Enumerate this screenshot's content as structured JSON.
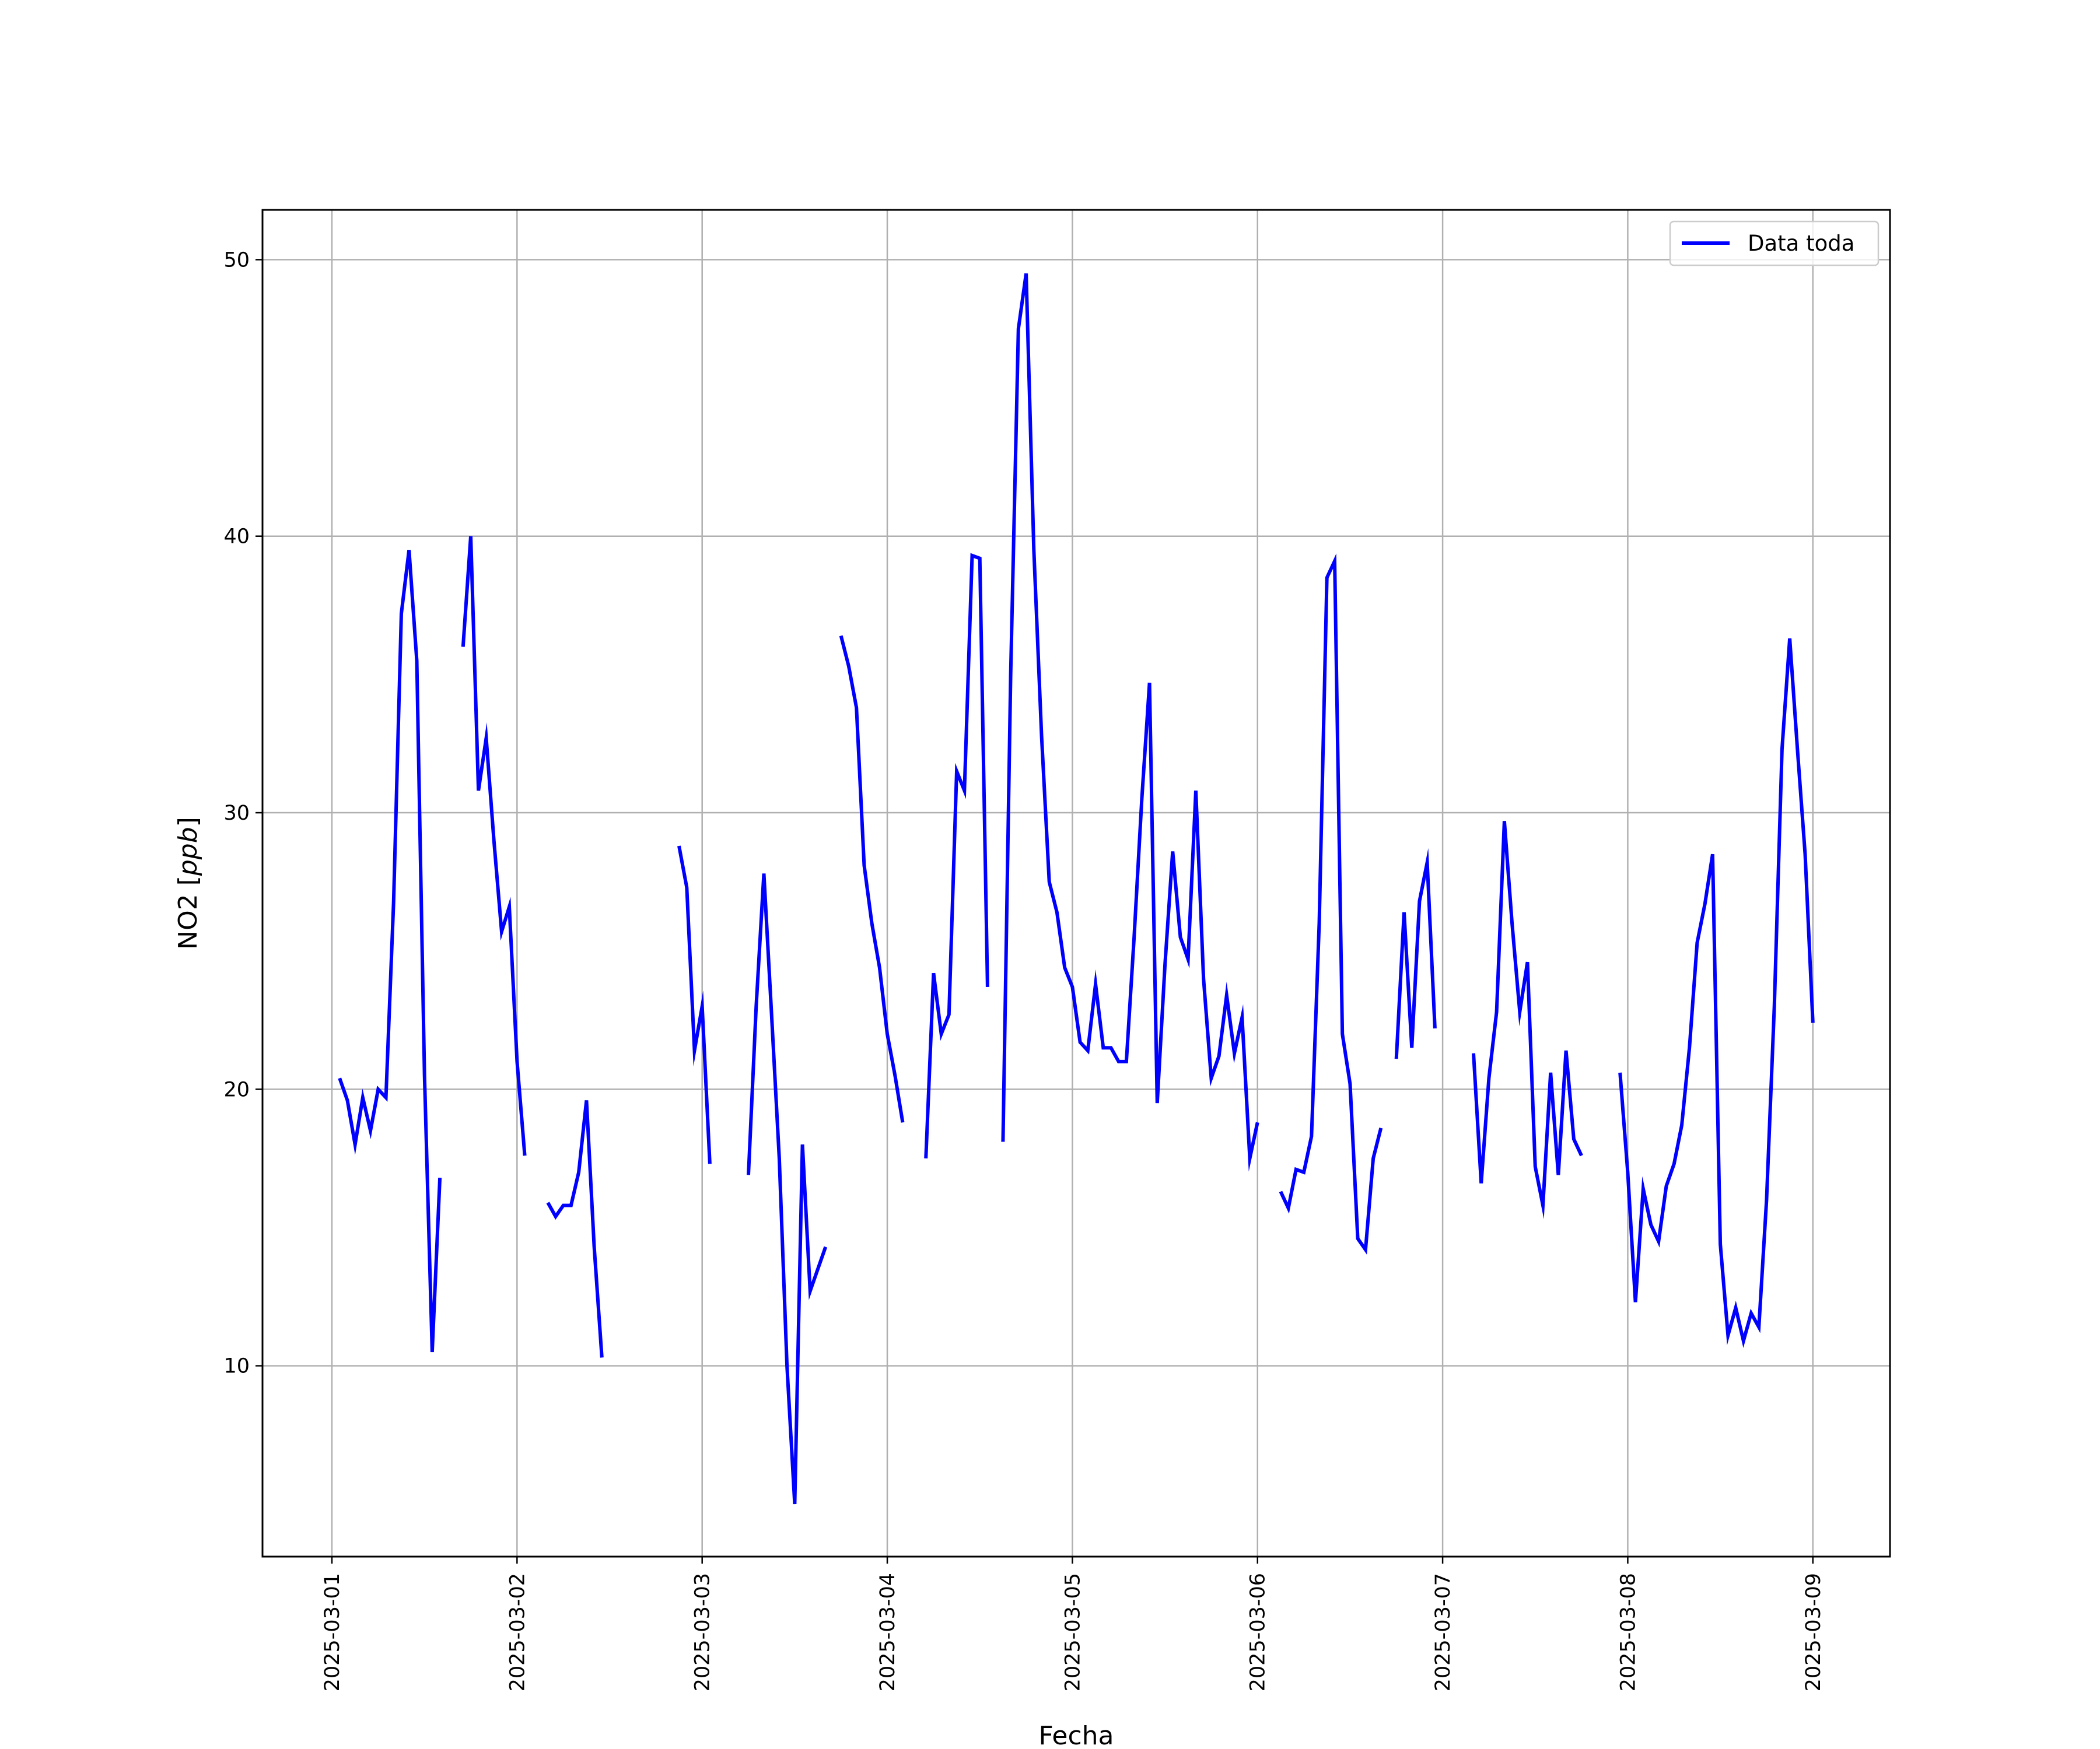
{
  "chart_data": {
    "type": "line",
    "xlabel": "Fecha",
    "ylabel": "NO2 [ppb]",
    "ylabel_main": "NO2 [",
    "ylabel_unit": "ppb",
    "ylabel_close": "]",
    "xlim": [
      "2025-02-28 15:00",
      "2025-03-09 10:00"
    ],
    "ylim": [
      3.1,
      51.8
    ],
    "x_tick_labels": [
      "2025-03-01",
      "2025-03-02",
      "2025-03-03",
      "2025-03-04",
      "2025-03-05",
      "2025-03-06",
      "2025-03-07",
      "2025-03-08",
      "2025-03-09"
    ],
    "y_tick_labels": [
      "10",
      "20",
      "30",
      "40",
      "50"
    ],
    "y_ticks": [
      10,
      20,
      30,
      40,
      50
    ],
    "grid": true,
    "legend_position": "top-right",
    "series": [
      {
        "name": "Data toda",
        "color": "#0000ff",
        "segments": [
          [
            [
              "2025-03-01 01:00",
              20.4
            ],
            [
              "2025-03-01 02:00",
              19.6
            ],
            [
              "2025-03-01 03:00",
              18.0
            ],
            [
              "2025-03-01 04:00",
              19.7
            ],
            [
              "2025-03-01 05:00",
              18.5
            ],
            [
              "2025-03-01 06:00",
              20.0
            ],
            [
              "2025-03-01 07:00",
              19.7
            ],
            [
              "2025-03-01 08:00",
              26.8
            ],
            [
              "2025-03-01 09:00",
              37.2
            ],
            [
              "2025-03-01 10:00",
              39.5
            ],
            [
              "2025-03-01 11:00",
              35.5
            ],
            [
              "2025-03-01 12:00",
              20.5
            ],
            [
              "2025-03-01 13:00",
              10.5
            ],
            [
              "2025-03-01 14:00",
              16.8
            ]
          ],
          [
            [
              "2025-03-01 17:00",
              36.0
            ],
            [
              "2025-03-01 18:00",
              40.0
            ],
            [
              "2025-03-01 19:00",
              30.8
            ],
            [
              "2025-03-01 20:00",
              32.7
            ],
            [
              "2025-03-01 21:00",
              29.0
            ],
            [
              "2025-03-01 22:00",
              25.7
            ],
            [
              "2025-03-01 23:00",
              26.6
            ],
            [
              "2025-03-02 00:00",
              21.0
            ],
            [
              "2025-03-02 01:00",
              17.6
            ]
          ],
          [
            [
              "2025-03-02 04:00",
              15.9
            ],
            [
              "2025-03-02 05:00",
              15.4
            ],
            [
              "2025-03-02 06:00",
              15.8
            ],
            [
              "2025-03-02 07:00",
              15.8
            ],
            [
              "2025-03-02 08:00",
              17.0
            ],
            [
              "2025-03-02 09:00",
              19.6
            ],
            [
              "2025-03-02 10:00",
              14.3
            ],
            [
              "2025-03-02 11:00",
              10.3
            ]
          ],
          [
            [
              "2025-03-02 21:00",
              28.8
            ],
            [
              "2025-03-02 22:00",
              27.3
            ],
            [
              "2025-03-02 23:00",
              21.4
            ],
            [
              "2025-03-03 00:00",
              23.0
            ],
            [
              "2025-03-03 01:00",
              17.3
            ]
          ],
          [
            [
              "2025-03-03 06:00",
              16.9
            ],
            [
              "2025-03-03 07:00",
              23.0
            ],
            [
              "2025-03-03 08:00",
              27.8
            ],
            [
              "2025-03-03 09:00",
              22.7
            ],
            [
              "2025-03-03 10:00",
              17.5
            ],
            [
              "2025-03-03 11:00",
              10.0
            ],
            [
              "2025-03-03 12:00",
              5.0
            ],
            [
              "2025-03-03 13:00",
              18.0
            ],
            [
              "2025-03-03 14:00",
              12.7
            ],
            [
              "2025-03-03 15:00",
              13.5
            ],
            [
              "2025-03-03 16:00",
              14.3
            ]
          ],
          [
            [
              "2025-03-03 18:00",
              36.4
            ],
            [
              "2025-03-03 19:00",
              35.3
            ],
            [
              "2025-03-03 20:00",
              33.8
            ],
            [
              "2025-03-03 21:00",
              28.1
            ],
            [
              "2025-03-03 22:00",
              26.0
            ],
            [
              "2025-03-03 23:00",
              24.4
            ],
            [
              "2025-03-04 00:00",
              22.0
            ],
            [
              "2025-03-04 01:00",
              20.5
            ],
            [
              "2025-03-04 02:00",
              18.8
            ]
          ],
          [
            [
              "2025-03-04 05:00",
              17.5
            ],
            [
              "2025-03-04 06:00",
              24.2
            ],
            [
              "2025-03-04 07:00",
              22.0
            ],
            [
              "2025-03-04 08:00",
              22.7
            ],
            [
              "2025-03-04 09:00",
              31.5
            ],
            [
              "2025-03-04 10:00",
              30.8
            ],
            [
              "2025-03-04 11:00",
              39.3
            ],
            [
              "2025-03-04 12:00",
              39.2
            ],
            [
              "2025-03-04 13:00",
              23.7
            ]
          ],
          [
            [
              "2025-03-04 15:00",
              18.1
            ],
            [
              "2025-03-04 16:00",
              35.0
            ],
            [
              "2025-03-04 17:00",
              47.5
            ],
            [
              "2025-03-04 18:00",
              49.5
            ],
            [
              "2025-03-04 19:00",
              39.5
            ],
            [
              "2025-03-04 20:00",
              32.8
            ],
            [
              "2025-03-04 21:00",
              27.5
            ],
            [
              "2025-03-04 22:00",
              26.4
            ],
            [
              "2025-03-04 23:00",
              24.4
            ],
            [
              "2025-03-05 00:00",
              23.7
            ],
            [
              "2025-03-05 01:00",
              21.7
            ],
            [
              "2025-03-05 02:00",
              21.4
            ],
            [
              "2025-03-05 03:00",
              23.8
            ],
            [
              "2025-03-05 04:00",
              21.5
            ],
            [
              "2025-03-05 05:00",
              21.5
            ],
            [
              "2025-03-05 06:00",
              21.0
            ],
            [
              "2025-03-05 07:00",
              21.0
            ],
            [
              "2025-03-05 08:00",
              25.5
            ],
            [
              "2025-03-05 09:00",
              30.5
            ],
            [
              "2025-03-05 10:00",
              34.7
            ],
            [
              "2025-03-05 11:00",
              19.5
            ],
            [
              "2025-03-05 12:00",
              24.5
            ],
            [
              "2025-03-05 13:00",
              28.6
            ],
            [
              "2025-03-05 14:00",
              25.5
            ],
            [
              "2025-03-05 15:00",
              24.7
            ],
            [
              "2025-03-05 16:00",
              30.8
            ],
            [
              "2025-03-05 17:00",
              24.0
            ],
            [
              "2025-03-05 18:00",
              20.4
            ],
            [
              "2025-03-05 19:00",
              21.2
            ],
            [
              "2025-03-05 20:00",
              23.4
            ],
            [
              "2025-03-05 21:00",
              21.3
            ],
            [
              "2025-03-05 22:00",
              22.6
            ],
            [
              "2025-03-05 23:00",
              17.5
            ],
            [
              "2025-03-06 00:00",
              18.8
            ]
          ],
          [
            [
              "2025-03-06 03:00",
              16.3
            ],
            [
              "2025-03-06 04:00",
              15.7
            ],
            [
              "2025-03-06 05:00",
              17.1
            ],
            [
              "2025-03-06 06:00",
              17.0
            ],
            [
              "2025-03-06 07:00",
              18.3
            ],
            [
              "2025-03-06 08:00",
              26.0
            ],
            [
              "2025-03-06 09:00",
              38.5
            ],
            [
              "2025-03-06 10:00",
              39.1
            ],
            [
              "2025-03-06 11:00",
              22.0
            ],
            [
              "2025-03-06 12:00",
              20.2
            ],
            [
              "2025-03-06 13:00",
              14.6
            ],
            [
              "2025-03-06 14:00",
              14.2
            ],
            [
              "2025-03-06 15:00",
              17.5
            ],
            [
              "2025-03-06 16:00",
              18.6
            ]
          ],
          [
            [
              "2025-03-06 18:00",
              21.1
            ],
            [
              "2025-03-06 19:00",
              26.4
            ],
            [
              "2025-03-06 20:00",
              21.5
            ],
            [
              "2025-03-06 21:00",
              26.8
            ],
            [
              "2025-03-06 22:00",
              28.2
            ],
            [
              "2025-03-06 23:00",
              22.2
            ]
          ],
          [
            [
              "2025-03-07 04:00",
              21.3
            ],
            [
              "2025-03-07 05:00",
              16.6
            ],
            [
              "2025-03-07 06:00",
              20.4
            ],
            [
              "2025-03-07 07:00",
              22.8
            ],
            [
              "2025-03-07 08:00",
              29.7
            ],
            [
              "2025-03-07 09:00",
              26.0
            ],
            [
              "2025-03-07 10:00",
              22.8
            ],
            [
              "2025-03-07 11:00",
              24.6
            ],
            [
              "2025-03-07 12:00",
              17.2
            ],
            [
              "2025-03-07 13:00",
              15.8
            ],
            [
              "2025-03-07 14:00",
              20.6
            ],
            [
              "2025-03-07 15:00",
              16.9
            ],
            [
              "2025-03-07 16:00",
              21.4
            ],
            [
              "2025-03-07 17:00",
              18.2
            ],
            [
              "2025-03-07 18:00",
              17.6
            ]
          ],
          [
            [
              "2025-03-07 23:00",
              20.6
            ],
            [
              "2025-03-08 00:00",
              17.0
            ],
            [
              "2025-03-08 01:00",
              12.3
            ],
            [
              "2025-03-08 02:00",
              16.4
            ],
            [
              "2025-03-08 03:00",
              15.1
            ],
            [
              "2025-03-08 04:00",
              14.5
            ],
            [
              "2025-03-08 05:00",
              16.5
            ],
            [
              "2025-03-08 06:00",
              17.3
            ],
            [
              "2025-03-08 07:00",
              18.7
            ],
            [
              "2025-03-08 08:00",
              21.5
            ],
            [
              "2025-03-08 09:00",
              25.3
            ],
            [
              "2025-03-08 10:00",
              26.7
            ],
            [
              "2025-03-08 11:00",
              28.5
            ],
            [
              "2025-03-08 12:00",
              14.4
            ],
            [
              "2025-03-08 13:00",
              11.1
            ],
            [
              "2025-03-08 14:00",
              12.1
            ],
            [
              "2025-03-08 15:00",
              10.9
            ],
            [
              "2025-03-08 16:00",
              11.9
            ],
            [
              "2025-03-08 17:00",
              11.4
            ],
            [
              "2025-03-08 18:00",
              16.0
            ],
            [
              "2025-03-08 19:00",
              23.0
            ],
            [
              "2025-03-08 20:00",
              32.3
            ],
            [
              "2025-03-08 21:00",
              36.3
            ],
            [
              "2025-03-08 22:00",
              32.3
            ],
            [
              "2025-03-08 23:00",
              28.5
            ],
            [
              "2025-03-09 00:00",
              22.4
            ]
          ]
        ]
      }
    ]
  }
}
